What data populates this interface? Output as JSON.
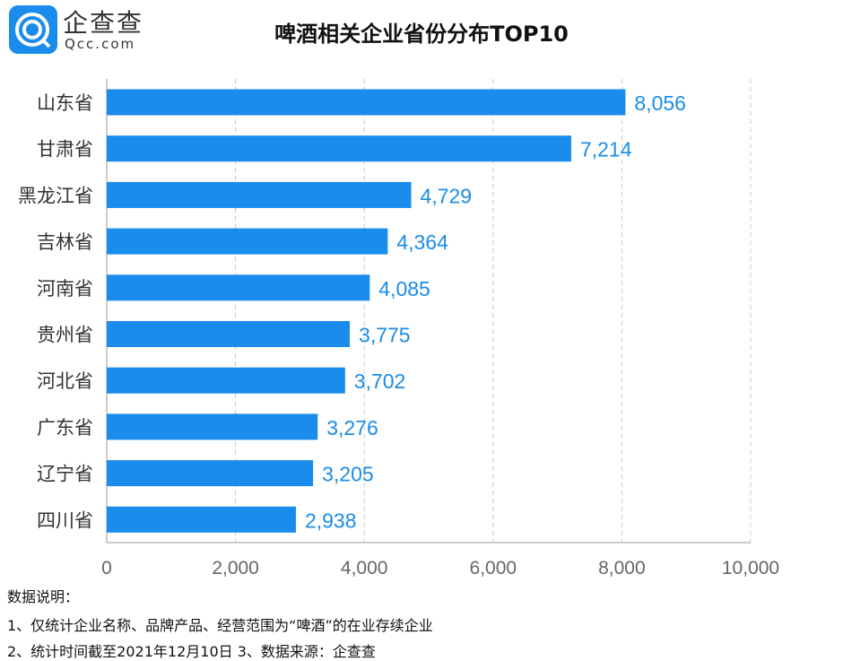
{
  "logo": {
    "cn": "企查查",
    "en": "Qcc.com"
  },
  "chart_data": {
    "type": "bar",
    "orientation": "horizontal",
    "title": "啤酒相关企业省份分布TOP10",
    "categories": [
      "山东省",
      "甘肃省",
      "黑龙江省",
      "吉林省",
      "河南省",
      "贵州省",
      "河北省",
      "广东省",
      "辽宁省",
      "四川省"
    ],
    "values": [
      8056,
      7214,
      4729,
      4364,
      4085,
      3775,
      3702,
      3276,
      3205,
      2938
    ],
    "value_labels": [
      "8,056",
      "7,214",
      "4,729",
      "4,364",
      "4,085",
      "3,775",
      "3,702",
      "3,276",
      "3,205",
      "2,938"
    ],
    "xlim": [
      0,
      10000
    ],
    "xticks": [
      0,
      2000,
      4000,
      6000,
      8000,
      10000
    ],
    "xtick_labels": [
      "0",
      "2,000",
      "4,000",
      "6,000",
      "8,000",
      "10,000"
    ],
    "grid": "vertical dashed",
    "bar_color": "#1a8cec",
    "label_color": "#1a8ce6"
  },
  "notes": {
    "heading": "数据说明：",
    "line1": "1、仅统计企业名称、品牌产品、经营范围为“啤酒”的在业存续企业",
    "line2": "2、统计时间截至2021年12月10日   3、数据来源：企查查"
  }
}
